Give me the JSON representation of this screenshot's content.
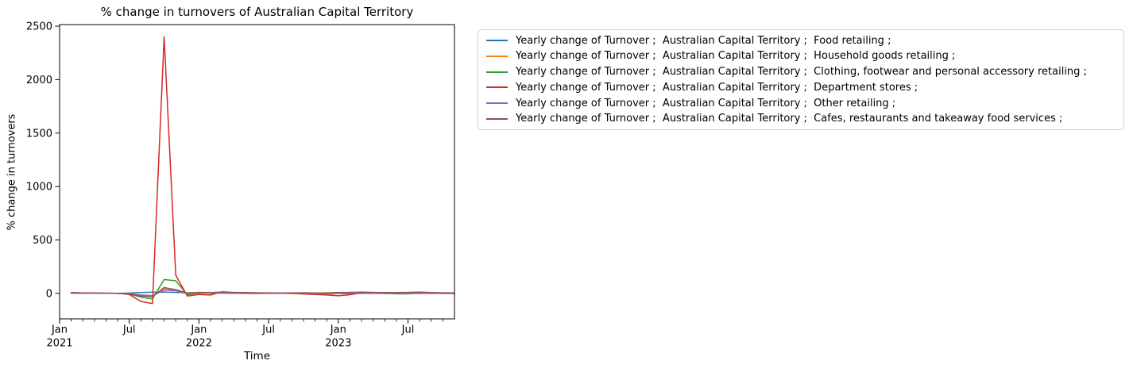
{
  "figure": {
    "title": "% change in turnovers of Australian Capital Territory",
    "xlabel": "Time",
    "ylabel": "% change in turnovers"
  },
  "chart_data": {
    "type": "line",
    "title": "% change in turnovers of Australian Capital Territory",
    "xlabel": "Time",
    "ylabel": "% change in turnovers",
    "grid": false,
    "legend_position": "outside-right",
    "ylim": [
      -238,
      2515
    ],
    "xlim_months": [
      "2021-01",
      "2023-11"
    ],
    "y_ticks": [
      0,
      500,
      1000,
      1500,
      2000,
      2500
    ],
    "x_major_ticks": [
      {
        "month": "2021-01",
        "label": "Jan",
        "year": "2021"
      },
      {
        "month": "2021-07",
        "label": "Jul",
        "year": ""
      },
      {
        "month": "2022-01",
        "label": "Jan",
        "year": "2022"
      },
      {
        "month": "2022-07",
        "label": "Jul",
        "year": ""
      },
      {
        "month": "2023-01",
        "label": "Jan",
        "year": "2023"
      },
      {
        "month": "2023-07",
        "label": "Jul",
        "year": ""
      }
    ],
    "x": [
      "2021-02",
      "2021-03",
      "2021-04",
      "2021-05",
      "2021-06",
      "2021-07",
      "2021-08",
      "2021-09",
      "2021-10",
      "2021-11",
      "2021-12",
      "2022-01",
      "2022-02",
      "2022-03",
      "2022-04",
      "2022-05",
      "2022-06",
      "2022-07",
      "2022-08",
      "2022-09",
      "2022-10",
      "2022-11",
      "2022-12",
      "2023-01",
      "2023-02",
      "2023-03",
      "2023-04",
      "2023-05",
      "2023-06",
      "2023-07",
      "2023-08",
      "2023-09",
      "2023-10",
      "2023-11"
    ],
    "series": [
      {
        "name": "Yearly change of Turnover ;  Australian Capital Territory ;  Food retailing ;",
        "color": "#1f77b4",
        "values": [
          5,
          4,
          3,
          2,
          2,
          3,
          8,
          11,
          12,
          10,
          5,
          4,
          3,
          2,
          2,
          3,
          3,
          2,
          2,
          3,
          3,
          2,
          3,
          4,
          4,
          3,
          3,
          2,
          2,
          2,
          3,
          3,
          2,
          2
        ]
      },
      {
        "name": "Yearly change of Turnover ;  Australian Capital Territory ;  Household goods retailing ;",
        "color": "#ff7f0e",
        "values": [
          4,
          2,
          2,
          1,
          0,
          -3,
          -20,
          -28,
          47,
          30,
          -5,
          3,
          2,
          1,
          0,
          -1,
          -2,
          0,
          1,
          -2,
          -4,
          -8,
          -6,
          -3,
          -2,
          -1,
          0,
          -2,
          -3,
          -2,
          -1,
          0,
          -1,
          -2
        ]
      },
      {
        "name": "Yearly change of Turnover ;  Australian Capital Territory ;  Clothing, footwear and personal accessory retailing ;",
        "color": "#2ca02c",
        "values": [
          3,
          2,
          2,
          1,
          0,
          -5,
          -35,
          -50,
          130,
          118,
          -13,
          5,
          4,
          3,
          2,
          2,
          3,
          2,
          2,
          3,
          2,
          -5,
          2,
          8,
          6,
          4,
          3,
          2,
          -4,
          -4,
          10,
          6,
          3,
          2
        ]
      },
      {
        "name": "Yearly change of Turnover ;  Australian Capital Territory ;  Department stores ;",
        "color": "#d62728",
        "values": [
          8,
          5,
          3,
          2,
          1,
          -10,
          -75,
          -95,
          2400,
          170,
          -25,
          -10,
          -15,
          15,
          8,
          4,
          2,
          3,
          2,
          1,
          -5,
          -10,
          -15,
          -22,
          -12,
          5,
          3,
          2,
          1,
          2,
          3,
          2,
          1,
          2
        ]
      },
      {
        "name": "Yearly change of Turnover ;  Australian Capital Territory ;  Other retailing ;",
        "color": "#9467bd",
        "values": [
          4,
          3,
          2,
          1,
          1,
          -2,
          -15,
          -20,
          30,
          25,
          0,
          8,
          5,
          3,
          2,
          1,
          2,
          2,
          1,
          2,
          1,
          -2,
          0,
          3,
          2,
          2,
          1,
          1,
          2,
          2,
          3,
          2,
          1,
          1
        ]
      },
      {
        "name": "Yearly change of Turnover ;  Australian Capital Territory ;  Cafes, restaurants and takeaway food services ;",
        "color": "#8c564b",
        "values": [
          6,
          4,
          3,
          3,
          2,
          -5,
          -25,
          -30,
          55,
          35,
          5,
          10,
          8,
          12,
          10,
          8,
          6,
          5,
          4,
          5,
          6,
          4,
          5,
          8,
          10,
          12,
          10,
          8,
          8,
          10,
          12,
          8,
          6,
          5
        ]
      }
    ]
  }
}
